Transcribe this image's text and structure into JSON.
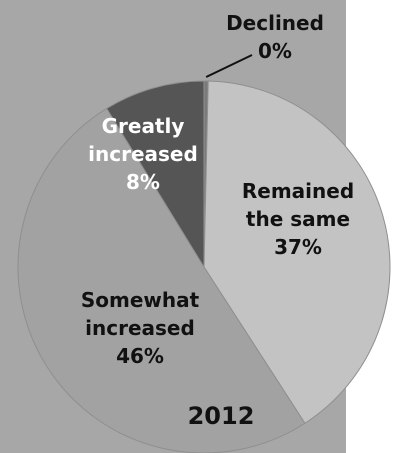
{
  "chart_data": {
    "type": "pie",
    "title": "2012",
    "slices": [
      {
        "label_lines": [
          "Declined",
          "0%"
        ],
        "value": 0,
        "color": "#7a7a7a"
      },
      {
        "label_lines": [
          "Remained",
          "the same",
          "37%"
        ],
        "value": 37,
        "color": "#c3c3c3"
      },
      {
        "label_lines": [
          "Somewhat",
          "increased",
          "46%"
        ],
        "value": 46,
        "color": "#a2a2a2"
      },
      {
        "label_lines": [
          "Greatly",
          "increased",
          "8%"
        ],
        "value": 8,
        "color": "#555555"
      }
    ],
    "colors": {
      "background_panel": "#a7a7a7",
      "page": "#ffffff",
      "label_dark": "#111111",
      "label_light": "#ffffff"
    }
  }
}
